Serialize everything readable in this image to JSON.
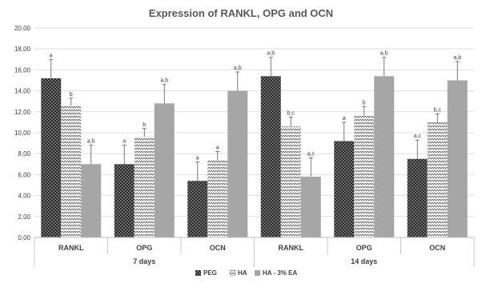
{
  "chart_data": {
    "type": "bar",
    "title": "Expression of RANKL, OPG and OCN",
    "ylim": [
      0,
      20
    ],
    "yticks": [
      "0,00",
      "2,00",
      "4,00",
      "6,00",
      "8,00",
      "10,00",
      "12,00",
      "14,00",
      "16,00",
      "18,00",
      "20,00"
    ],
    "grid": true,
    "legend_position": "bottom",
    "groups": [
      {
        "label": "7 days",
        "categories": [
          "RANKL",
          "OPG",
          "OCN"
        ]
      },
      {
        "label": "14 days",
        "categories": [
          "RANKL",
          "OPG",
          "OCN"
        ]
      }
    ],
    "series": [
      {
        "name": "PEG",
        "pattern": "checker",
        "color": "#2b2b2b",
        "values": [
          15.2,
          7.0,
          5.4,
          15.4,
          9.2,
          7.5
        ],
        "errors": [
          1.8,
          1.8,
          1.8,
          1.8,
          1.8,
          1.8
        ],
        "labels": [
          "a",
          "a",
          "a",
          "a,b",
          "a",
          "a,c"
        ]
      },
      {
        "name": "HA",
        "pattern": "zigzag",
        "color": "#7f7f7f",
        "values": [
          12.6,
          9.6,
          7.4,
          10.6,
          11.6,
          11.0
        ],
        "errors": [
          0.7,
          0.8,
          0.8,
          0.9,
          0.9,
          0.8
        ],
        "labels": [
          "b",
          "b",
          "a",
          "b,c",
          "b",
          "b,c"
        ]
      },
      {
        "name": "HA - 3% EA",
        "pattern": "solid",
        "color": "#a6a6a6",
        "values": [
          7.0,
          12.8,
          14.0,
          5.8,
          15.4,
          15.0
        ],
        "errors": [
          1.8,
          1.8,
          1.8,
          1.8,
          1.8,
          1.8
        ],
        "labels": [
          "a,b",
          "a,b",
          "a,b",
          "a,c",
          "a,b",
          "a,b"
        ]
      }
    ]
  }
}
